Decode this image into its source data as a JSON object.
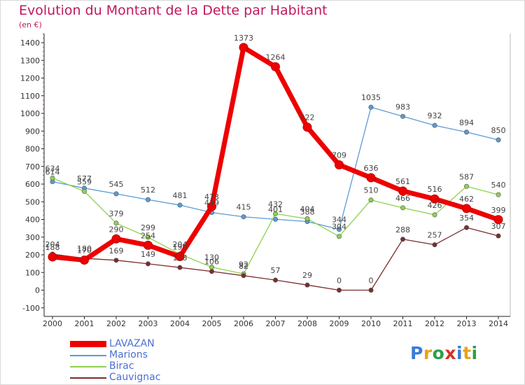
{
  "chart_data": {
    "type": "line",
    "title": "Evolution du Montant de la Dette par Habitant",
    "subtitle": "(en €)",
    "x": [
      "2000",
      "2001",
      "2002",
      "2003",
      "2004",
      "2005",
      "2006",
      "2007",
      "2008",
      "2009",
      "2010",
      "2011",
      "2012",
      "2013",
      "2014"
    ],
    "yticks": [
      -100,
      0,
      100,
      200,
      300,
      400,
      500,
      600,
      700,
      800,
      900,
      1000,
      1100,
      1200,
      1300,
      1400
    ],
    "ylim": [
      -100,
      1450
    ],
    "grid": false,
    "legend_position": "bottom-left",
    "series": [
      {
        "name": "LAVAZAN",
        "color": "#ee0000",
        "values": [
          188,
          170,
          290,
          254,
          190,
          473,
          1373,
          1264,
          922,
          709,
          636,
          561,
          516,
          462,
          399
        ]
      },
      {
        "name": "Marions",
        "color": "#5b9bd5",
        "values": [
          614,
          577,
          545,
          512,
          481,
          439,
          415,
          401,
          388,
          344,
          1035,
          983,
          932,
          894,
          850
        ]
      },
      {
        "name": "Birac",
        "color": "#8fd14f",
        "values": [
          634,
          559,
          379,
          299,
          204,
          130,
          92,
          432,
          404,
          304,
          510,
          466,
          426,
          587,
          540
        ]
      },
      {
        "name": "Cauvignac",
        "color": "#7a2e2e",
        "values": [
          204,
          180,
          169,
          149,
          128,
          106,
          82,
          57,
          29,
          0,
          0,
          288,
          257,
          354,
          307
        ]
      }
    ]
  }
}
